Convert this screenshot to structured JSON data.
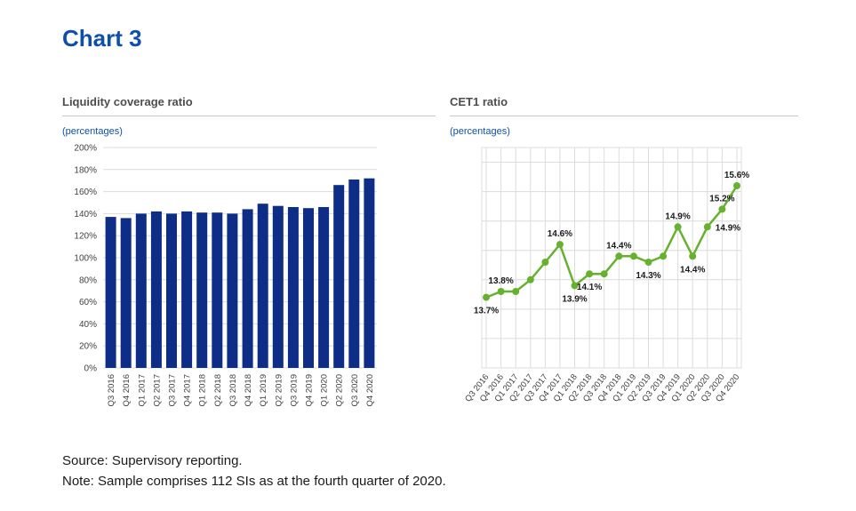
{
  "title": "Chart 3",
  "colors": {
    "accent_blue": "#0e4fae",
    "bar_blue": "#0d2d87",
    "line_green": "#66b22e",
    "grid": "#dcdcdc",
    "rule": "#c9c9c9",
    "axis_text": "#404040"
  },
  "footer": {
    "source": "Source: Supervisory reporting.",
    "note": "Note: Sample comprises 112 SIs as at the fourth quarter of 2020."
  },
  "chart_data": [
    {
      "type": "bar",
      "title": "Liquidity coverage ratio",
      "unit_label": "(percentages)",
      "categories": [
        "Q3 2016",
        "Q4 2016",
        "Q1 2017",
        "Q2 2017",
        "Q3 2017",
        "Q4 2017",
        "Q1 2018",
        "Q2 2018",
        "Q3 2018",
        "Q4 2018",
        "Q1 2019",
        "Q2 2019",
        "Q3 2019",
        "Q4 2019",
        "Q1 2020",
        "Q2 2020",
        "Q3 2020",
        "Q4 2020"
      ],
      "values": [
        137,
        136,
        140,
        142,
        140,
        142,
        141,
        141,
        140,
        144,
        149,
        147,
        146,
        145,
        146,
        166,
        171,
        172
      ],
      "yticks": [
        "0%",
        "20%",
        "40%",
        "60%",
        "80%",
        "100%",
        "120%",
        "140%",
        "160%",
        "180%",
        "200%"
      ],
      "ylim": [
        0,
        200
      ],
      "grid": "horizontal",
      "legend": "none"
    },
    {
      "type": "line",
      "title": "CET1 ratio",
      "unit_label": "(percentages)",
      "categories": [
        "Q3 2016",
        "Q4 2016",
        "Q1 2017",
        "Q2 2017",
        "Q3 2017",
        "Q4 2017",
        "Q1 2018",
        "Q2 2018",
        "Q3 2018",
        "Q4 2018",
        "Q1 2019",
        "Q2 2019",
        "Q3 2019",
        "Q4 2019",
        "Q1 2020",
        "Q2 2020",
        "Q3 2020",
        "Q4 2020"
      ],
      "values": [
        13.7,
        13.8,
        13.8,
        14.0,
        14.3,
        14.6,
        13.9,
        14.1,
        14.1,
        14.4,
        14.4,
        14.3,
        14.4,
        14.9,
        14.4,
        14.9,
        15.2,
        15.6
      ],
      "data_labels": [
        {
          "index": 0,
          "text": "13.7%",
          "position": "below"
        },
        {
          "index": 1,
          "text": "13.8%",
          "position": "above"
        },
        {
          "index": 5,
          "text": "14.6%",
          "position": "above"
        },
        {
          "index": 6,
          "text": "13.9%",
          "position": "below"
        },
        {
          "index": 7,
          "text": "14.1%",
          "position": "below"
        },
        {
          "index": 9,
          "text": "14.4%",
          "position": "above"
        },
        {
          "index": 11,
          "text": "14.3%",
          "position": "below"
        },
        {
          "index": 13,
          "text": "14.9%",
          "position": "above"
        },
        {
          "index": 14,
          "text": "14.4%",
          "position": "below"
        },
        {
          "index": 15,
          "text": "14.9%",
          "position": "right"
        },
        {
          "index": 16,
          "text": "15.2%",
          "position": "above"
        },
        {
          "index": 17,
          "text": "15.6%",
          "position": "above"
        }
      ],
      "ylim": [
        12.5,
        16.25
      ],
      "grid": "both",
      "legend": "none"
    }
  ]
}
